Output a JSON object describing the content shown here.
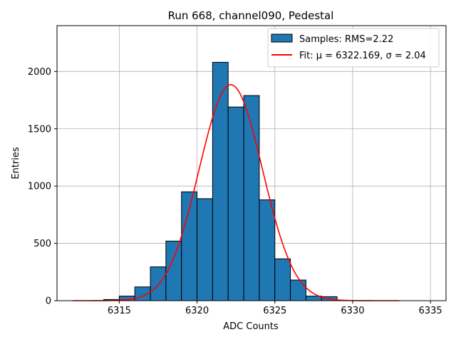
{
  "chart_data": {
    "type": "bar",
    "title": "Run 668, channel090, Pedestal",
    "xlabel": "ADC Counts",
    "ylabel": "Entries",
    "xlim": [
      6311,
      6336
    ],
    "ylim": [
      0,
      2400
    ],
    "xticks": [
      6315,
      6320,
      6325,
      6330,
      6335
    ],
    "yticks": [
      0,
      500,
      1000,
      1500,
      2000
    ],
    "grid": true,
    "legend_position": "top-right",
    "histogram": {
      "name": "Samples: RMS=2.22",
      "color": "#1f77b4",
      "edgecolor": "#000000",
      "bin_edges": [
        6314,
        6315,
        6316,
        6317,
        6318,
        6319,
        6320,
        6321,
        6322,
        6323,
        6324,
        6325,
        6326,
        6327,
        6328,
        6329
      ],
      "counts": [
        10,
        40,
        120,
        295,
        520,
        950,
        890,
        2080,
        1690,
        1790,
        880,
        365,
        180,
        40,
        35
      ]
    },
    "fit": {
      "name": "Fit: μ = 6322.169, σ = 2.04",
      "color": "#ff0000",
      "mu": 6322.169,
      "sigma": 2.04,
      "amplitude": 1885,
      "x_range": [
        6312,
        6333
      ]
    }
  }
}
